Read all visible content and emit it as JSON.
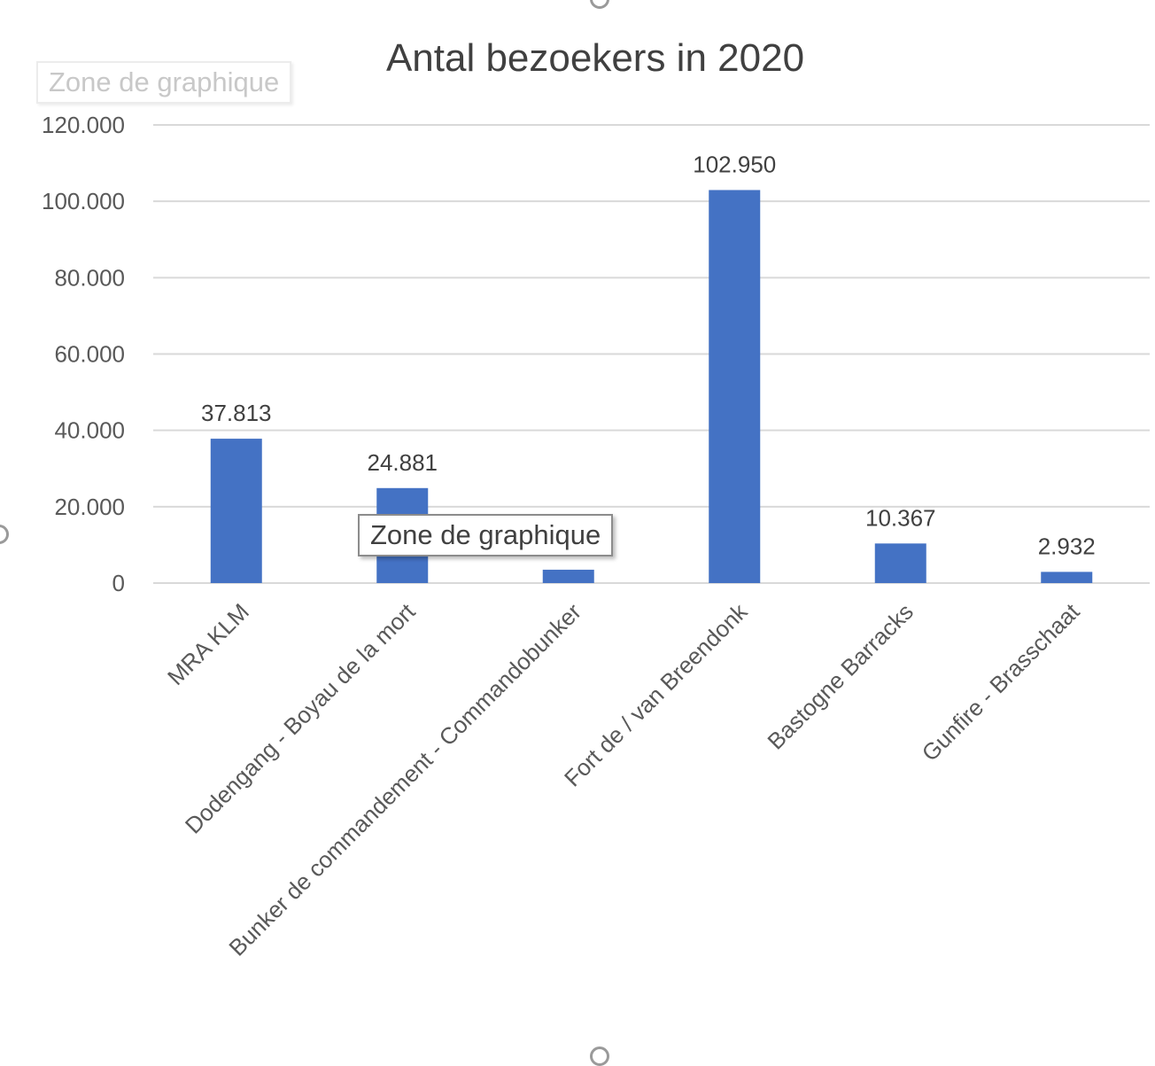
{
  "tooltip_text": "Zone de graphique",
  "ghost_tooltip_text": "Zone de graphique",
  "chart_data": {
    "type": "bar",
    "title": "Antal bezoekers in 2020",
    "categories": [
      "MRA KLM",
      "Dodengang - Boyau de la mort",
      "Bunker de commandement - Commandobunker",
      "Fort de / van Breendonk",
      "Bastogne Barracks",
      "Gunfire - Brasschaat"
    ],
    "values": [
      37813,
      24881,
      3500,
      102950,
      10367,
      2932
    ],
    "data_labels": [
      "37.813",
      "24.881",
      "",
      "102.950",
      "10.367",
      "2.932"
    ],
    "ylim": [
      0,
      120000
    ],
    "y_ticks": [
      0,
      20000,
      40000,
      60000,
      80000,
      100000,
      120000
    ],
    "y_tick_labels": [
      "0",
      "20.000",
      "40.000",
      "60.000",
      "80.000",
      "100.000",
      "120.000"
    ],
    "xlabel": "",
    "ylabel": "",
    "grid": true,
    "legend": "none",
    "bar_color": "#4472c4",
    "grid_color": "#d9d9d9"
  }
}
